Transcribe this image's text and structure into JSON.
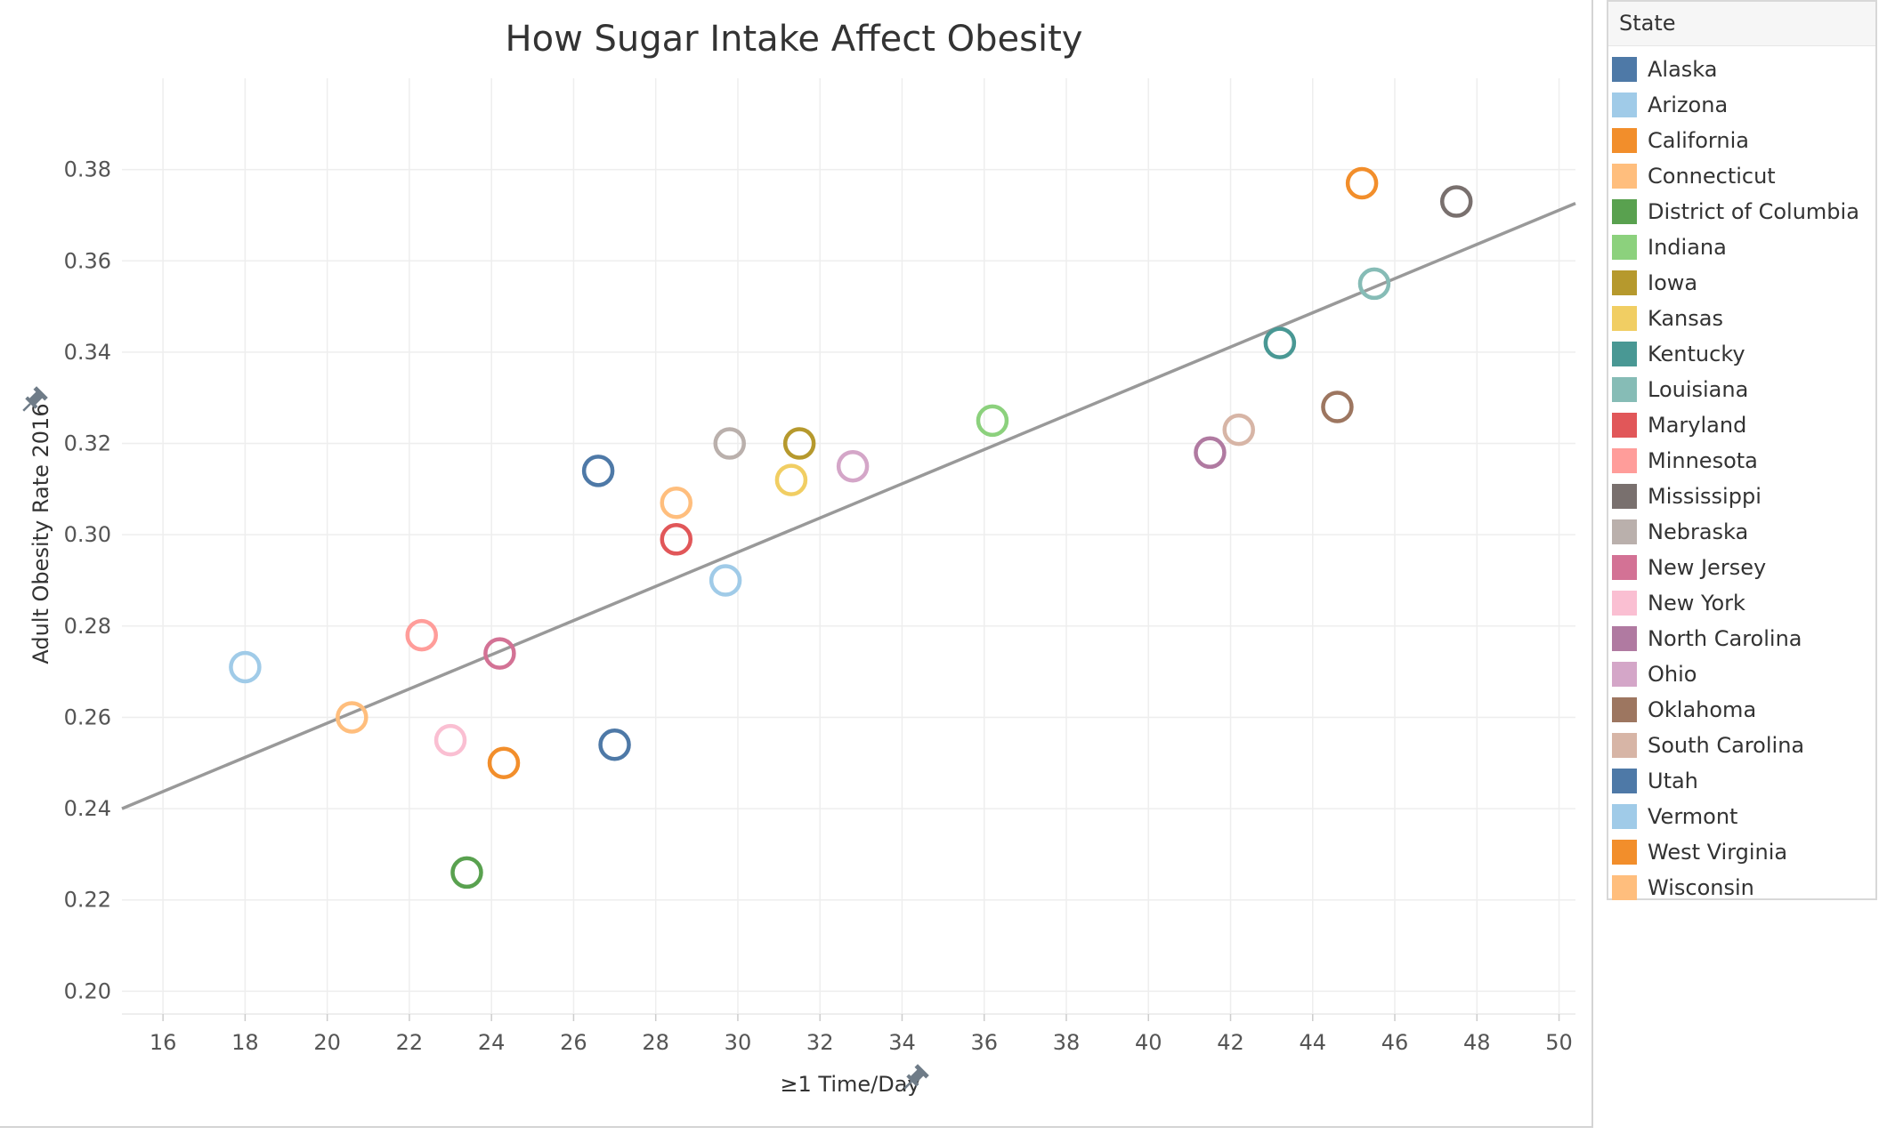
{
  "chart_data": {
    "type": "scatter",
    "title": "How Sugar Intake Affect Obesity",
    "xlabel": "≥1 Time/Day",
    "ylabel": "Adult Obesity Rate 2016",
    "xlim": [
      15,
      50.4
    ],
    "ylim": [
      0.195,
      0.4
    ],
    "xticks": [
      16,
      18,
      20,
      22,
      24,
      26,
      28,
      30,
      32,
      34,
      36,
      38,
      40,
      42,
      44,
      46,
      48,
      50
    ],
    "yticks": [
      0.2,
      0.22,
      0.24,
      0.26,
      0.28,
      0.3,
      0.32,
      0.34,
      0.36,
      0.38
    ],
    "xtick_labels": [
      "16",
      "18",
      "20",
      "22",
      "24",
      "26",
      "28",
      "30",
      "32",
      "34",
      "36",
      "38",
      "40",
      "42",
      "44",
      "46",
      "48",
      "50"
    ],
    "ytick_labels": [
      "0.20",
      "0.22",
      "0.24",
      "0.26",
      "0.28",
      "0.30",
      "0.32",
      "0.34",
      "0.36",
      "0.38"
    ],
    "grid": true,
    "trendline": {
      "x": [
        15,
        50.4
      ],
      "y": [
        0.24,
        0.3726
      ],
      "color": "#999999"
    },
    "legend_title": "State",
    "legend_position": "right",
    "series": [
      {
        "name": "Alaska",
        "color": "#4e79a7",
        "points": [
          [
            26.6,
            0.314
          ]
        ]
      },
      {
        "name": "Arizona",
        "color": "#a0cbe8",
        "points": [
          [
            29.7,
            0.29
          ]
        ]
      },
      {
        "name": "California",
        "color": "#f28e2b",
        "points": [
          [
            45.2,
            0.377
          ]
        ]
      },
      {
        "name": "Connecticut",
        "color": "#ffbe7d",
        "points": [
          [
            28.5,
            0.307
          ]
        ]
      },
      {
        "name": "District of Columbia",
        "color": "#59a14f",
        "points": [
          [
            23.4,
            0.226
          ]
        ]
      },
      {
        "name": "Indiana",
        "color": "#8cd17d",
        "points": [
          [
            36.2,
            0.325
          ]
        ]
      },
      {
        "name": "Iowa",
        "color": "#b6992d",
        "points": [
          [
            31.5,
            0.32
          ]
        ]
      },
      {
        "name": "Kansas",
        "color": "#f1ce63",
        "points": [
          [
            31.3,
            0.312
          ]
        ]
      },
      {
        "name": "Kentucky",
        "color": "#499894",
        "points": [
          [
            43.2,
            0.342
          ]
        ]
      },
      {
        "name": "Louisiana",
        "color": "#86bcb6",
        "points": [
          [
            45.5,
            0.355
          ]
        ]
      },
      {
        "name": "Maryland",
        "color": "#e15759",
        "points": [
          [
            28.5,
            0.299
          ]
        ]
      },
      {
        "name": "Minnesota",
        "color": "#ff9d9a",
        "points": [
          [
            22.3,
            0.278
          ]
        ]
      },
      {
        "name": "Mississippi",
        "color": "#79706e",
        "points": [
          [
            47.5,
            0.373
          ]
        ]
      },
      {
        "name": "Nebraska",
        "color": "#bab0ac",
        "points": [
          [
            29.8,
            0.32
          ]
        ]
      },
      {
        "name": "New Jersey",
        "color": "#d37295",
        "points": [
          [
            24.2,
            0.274
          ]
        ]
      },
      {
        "name": "New York",
        "color": "#fabfd2",
        "points": [
          [
            23.0,
            0.255
          ]
        ]
      },
      {
        "name": "North Carolina",
        "color": "#b07aa1",
        "points": [
          [
            41.5,
            0.318
          ]
        ]
      },
      {
        "name": "Ohio",
        "color": "#d4a6c8",
        "points": [
          [
            32.8,
            0.315
          ]
        ]
      },
      {
        "name": "Oklahoma",
        "color": "#9d7660",
        "points": [
          [
            44.6,
            0.328
          ]
        ]
      },
      {
        "name": "South Carolina",
        "color": "#d7b5a6",
        "points": [
          [
            42.2,
            0.323
          ]
        ]
      },
      {
        "name": "Utah",
        "color": "#4e79a7",
        "points": [
          [
            27.0,
            0.254
          ]
        ]
      },
      {
        "name": "Vermont",
        "color": "#a0cbe8",
        "points": [
          [
            18.0,
            0.271
          ]
        ]
      },
      {
        "name": "West Virginia",
        "color": "#f28e2b",
        "points": [
          [
            24.3,
            0.25
          ]
        ]
      },
      {
        "name": "Wisconsin",
        "color": "#ffbe7d",
        "points": [
          [
            20.6,
            0.26
          ]
        ]
      }
    ]
  }
}
